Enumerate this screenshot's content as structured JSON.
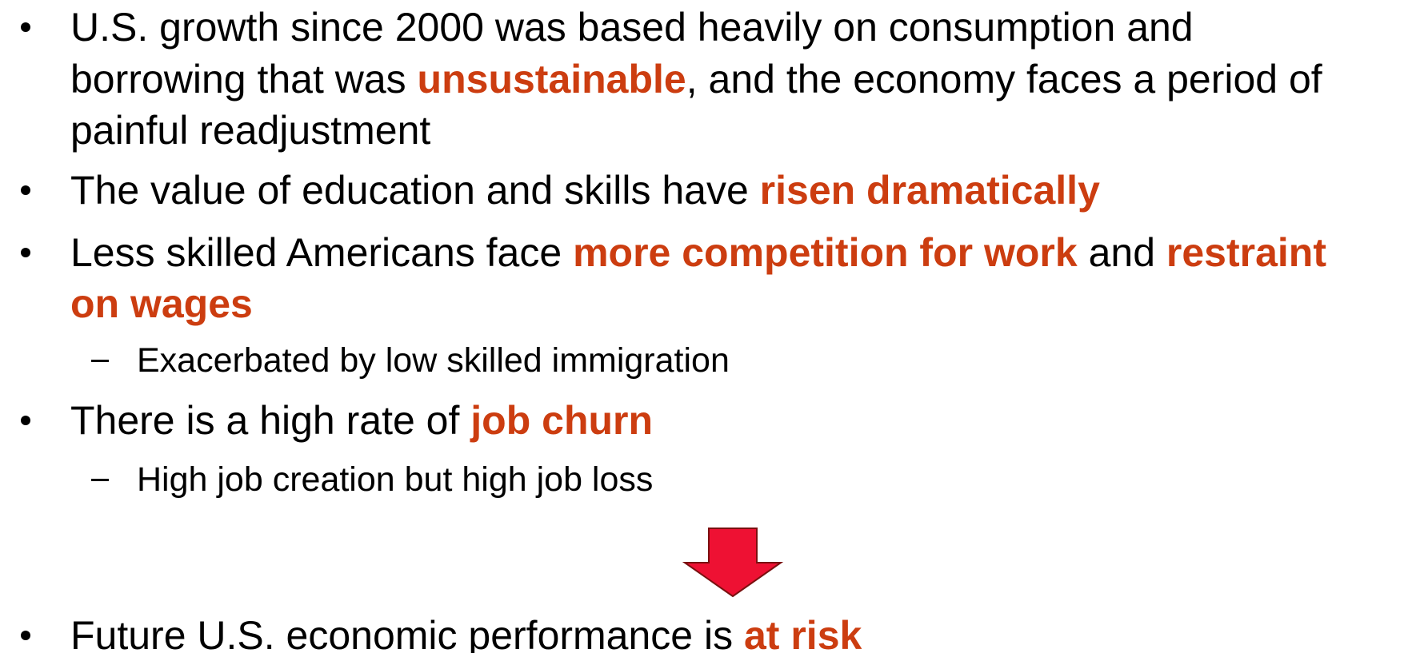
{
  "emphasis_color": "#cc3d10",
  "items": [
    {
      "level": 1,
      "lines": [
        [
          {
            "text": "U.S. growth since 2000 was based heavily on consumption and"
          }
        ],
        [
          {
            "text": "borrowing that was "
          },
          {
            "text": "unsustainable",
            "emphasis": true
          },
          {
            "text": ", and the economy faces a period of"
          }
        ],
        [
          {
            "text": "painful readjustment"
          }
        ]
      ]
    },
    {
      "level": 1,
      "lines": [
        [
          {
            "text": "The value of education and skills have "
          },
          {
            "text": "risen dramatically",
            "emphasis": true
          }
        ]
      ]
    },
    {
      "level": 1,
      "lines": [
        [
          {
            "text": "Less skilled Americans face "
          },
          {
            "text": "more competition for work",
            "emphasis": true
          },
          {
            "text": " and "
          },
          {
            "text": "restraint",
            "emphasis": true
          }
        ],
        [
          {
            "text": "on wages",
            "emphasis": true
          }
        ]
      ]
    },
    {
      "level": 2,
      "lines": [
        [
          {
            "text": "Exacerbated by low skilled immigration"
          }
        ]
      ]
    },
    {
      "level": 1,
      "lines": [
        [
          {
            "text": "There is a high rate of "
          },
          {
            "text": "job churn",
            "emphasis": true
          }
        ]
      ]
    },
    {
      "level": 2,
      "lines": [
        [
          {
            "text": "High job creation but high job loss"
          }
        ]
      ]
    },
    {
      "level": 1,
      "lines": [
        [
          {
            "text": "Future U.S. economic performance is "
          },
          {
            "text": "at risk",
            "emphasis": true
          }
        ]
      ]
    }
  ]
}
